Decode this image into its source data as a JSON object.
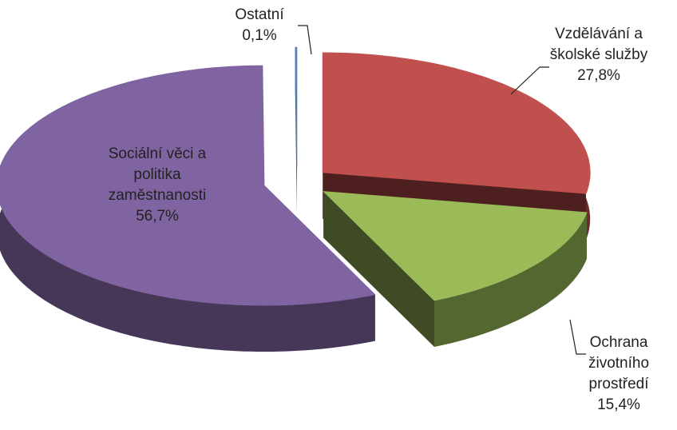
{
  "chart_data": {
    "type": "pie3d",
    "categories": [
      "Vzdělávání a školské služby",
      "Ochrana životního prostředí",
      "Sociální věci a politika zaměstnanosti",
      "Ostatní"
    ],
    "values": [
      27.8,
      15.4,
      56.7,
      0.1
    ],
    "value_labels": [
      "27,8%",
      "15,4%",
      "56,7%",
      "0,1%"
    ],
    "colors": [
      "#c0504d",
      "#9bbb59",
      "#8064a2",
      "#4f81bd"
    ]
  }
}
